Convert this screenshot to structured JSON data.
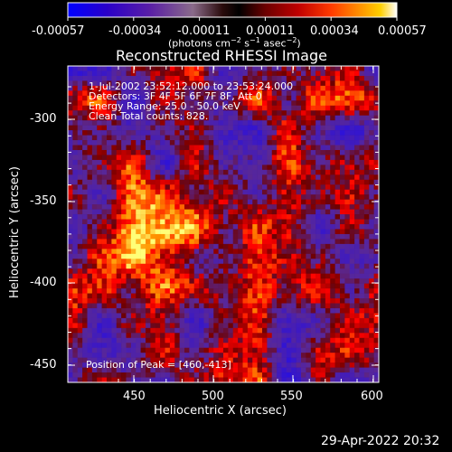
{
  "colorbar": {
    "ticks": [
      "-0.00057",
      "-0.00034",
      "-0.00011",
      "0.00011",
      "0.00034",
      "0.00057"
    ],
    "units": "(photons cm-2 s-1 asec-2)"
  },
  "plot": {
    "title": "Reconstructed RHESSI Image",
    "xlabel": "Heliocentric X (arcsec)",
    "ylabel": "Heliocentric Y (arcsec)",
    "x_ticks": [
      "450",
      "500",
      "550",
      "600"
    ],
    "y_ticks": [
      "-300",
      "-350",
      "-400",
      "-450"
    ],
    "annotations": {
      "time_range": " 1-Jul-2002 23:52:12.000 to 23:53:24.000",
      "detectors": "Detectors: 3F 4F 5F 6F 7F 8F, Att 0",
      "energy_range": "Energy Range: 25.0 - 50.0 keV",
      "clean_counts": "Clean    Total counts: 828.",
      "peak_position": "Position of Peak = [460,-413]"
    }
  },
  "footer": {
    "timestamp": "29-Apr-2022 20:32"
  }
}
